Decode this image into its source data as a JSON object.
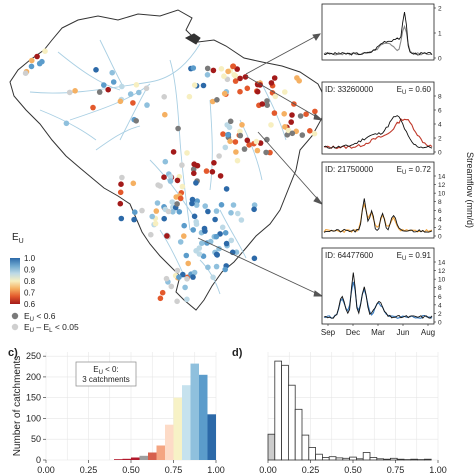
{
  "map_panel": {
    "legend": {
      "title_main": "E",
      "title_sub": "U",
      "colorbar_ticks": [
        "1.0",
        "0.9",
        "0.8",
        "0.7",
        "0.6"
      ],
      "colorbar_colors": [
        "#2c69a8",
        "#6ea8cf",
        "#bcd9e6",
        "#f7efc0",
        "#f5b062",
        "#e3592c",
        "#a31a1a"
      ],
      "point_legend": [
        {
          "label_a": "E",
          "label_a_sub": "U",
          "label_b": " < 0.6",
          "color": "#7a7a7a"
        },
        {
          "label_a": "E",
          "label_a_sub": "U",
          "label_b": " – E",
          "label_c_sub": "L",
          "label_d": " < 0.05",
          "color": "#cfcfcf"
        }
      ]
    },
    "river_color": "#a9cfe3",
    "outline_color": "#333333"
  },
  "hydrographs": {
    "ylabel": "Streamflow (mm/d)",
    "x_ticks": [
      "Sep",
      "Dec",
      "Mar",
      "Jun",
      "Aug"
    ],
    "panels": [
      {
        "id_label": "",
        "eu_label": "",
        "y_ticks": [
          "0",
          "1",
          "2"
        ],
        "obs_color": "#111111",
        "sim_color": "#8a8a8a"
      },
      {
        "id_label": "ID: 33260000",
        "eu_label": "0.60",
        "y_ticks": [
          "0",
          "2",
          "4",
          "6",
          "8"
        ],
        "obs_color": "#111111",
        "sim_color": "#c0392b"
      },
      {
        "id_label": "ID: 21750000",
        "eu_label": "0.72",
        "y_ticks": [
          "0",
          "2",
          "4",
          "6",
          "8",
          "10",
          "12",
          "14"
        ],
        "obs_color": "#111111",
        "sim_color": "#f0a33c"
      },
      {
        "id_label": "ID: 64477600",
        "eu_label": "0.91",
        "y_ticks": [
          "0",
          "2",
          "4",
          "6",
          "8",
          "10",
          "12",
          "14"
        ],
        "obs_color": "#111111",
        "sim_color": "#3a7bbf"
      }
    ]
  },
  "chart_data": [
    {
      "panel_label": "c)",
      "type": "bar",
      "ylabel": "Number of catchments",
      "xlabel": "",
      "x_ticks": [
        "0.00",
        "0.25",
        "0.50",
        "0.75",
        "1.00"
      ],
      "y_ticks": [
        "0",
        "50",
        "100",
        "150",
        "200",
        "250"
      ],
      "xlim": [
        0,
        1
      ],
      "ylim": [
        0,
        260
      ],
      "annotation_line1": "E",
      "annotation_line1_sub": "U",
      "annotation_line1_rest": " < 0:",
      "annotation_line2": "3 catchments",
      "bin_width": 0.05,
      "bins": [
        {
          "x": 0.4,
          "value": 2,
          "color": "#b2182b"
        },
        {
          "x": 0.45,
          "value": 3,
          "color": "#b2182b"
        },
        {
          "x": 0.5,
          "value": 6,
          "color": "#b2182b"
        },
        {
          "x": 0.55,
          "value": 10,
          "color": "#9e9e9e"
        },
        {
          "x": 0.6,
          "value": 18,
          "color": "#d6604d"
        },
        {
          "x": 0.65,
          "value": 35,
          "color": "#f4a582"
        },
        {
          "x": 0.7,
          "value": 85,
          "color": "#fddbc7"
        },
        {
          "x": 0.75,
          "value": 150,
          "color": "#f7f2c6"
        },
        {
          "x": 0.8,
          "value": 180,
          "color": "#c6e2ee"
        },
        {
          "x": 0.85,
          "value": 232,
          "color": "#8fc0dd"
        },
        {
          "x": 0.9,
          "value": 205,
          "color": "#5b9ccb"
        },
        {
          "x": 0.95,
          "value": 110,
          "color": "#2c69a8"
        }
      ]
    },
    {
      "panel_label": "d)",
      "type": "bar",
      "ylabel": "",
      "xlabel": "",
      "x_ticks": [
        "0.00",
        "0.25",
        "0.50",
        "0.75",
        "1.00"
      ],
      "y_ticks": [],
      "xlim": [
        0,
        1
      ],
      "ylim": [
        0,
        260
      ],
      "bin_width": 0.04,
      "bins": [
        {
          "x": 0.0,
          "value": 62,
          "color": "#cccccc"
        },
        {
          "x": 0.04,
          "value": 238,
          "color": "#ffffff"
        },
        {
          "x": 0.08,
          "value": 228,
          "color": "#ffffff"
        },
        {
          "x": 0.12,
          "value": 180,
          "color": "#ffffff"
        },
        {
          "x": 0.16,
          "value": 122,
          "color": "#ffffff"
        },
        {
          "x": 0.2,
          "value": 60,
          "color": "#ffffff"
        },
        {
          "x": 0.24,
          "value": 30,
          "color": "#ffffff"
        },
        {
          "x": 0.28,
          "value": 14,
          "color": "#ffffff"
        },
        {
          "x": 0.32,
          "value": 6,
          "color": "#ffffff"
        },
        {
          "x": 0.36,
          "value": 8,
          "color": "#ffffff"
        },
        {
          "x": 0.4,
          "value": 5,
          "color": "#ffffff"
        },
        {
          "x": 0.44,
          "value": 4,
          "color": "#ffffff"
        },
        {
          "x": 0.48,
          "value": 7,
          "color": "#ffffff"
        },
        {
          "x": 0.52,
          "value": 3,
          "color": "#ffffff"
        },
        {
          "x": 0.56,
          "value": 18,
          "color": "#ffffff"
        },
        {
          "x": 0.6,
          "value": 6,
          "color": "#ffffff"
        },
        {
          "x": 0.64,
          "value": 3,
          "color": "#ffffff"
        },
        {
          "x": 0.68,
          "value": 2,
          "color": "#ffffff"
        },
        {
          "x": 0.72,
          "value": 4,
          "color": "#ffffff"
        },
        {
          "x": 0.76,
          "value": 2,
          "color": "#ffffff"
        },
        {
          "x": 0.8,
          "value": 1,
          "color": "#ffffff"
        },
        {
          "x": 0.84,
          "value": 2,
          "color": "#ffffff"
        },
        {
          "x": 0.88,
          "value": 1,
          "color": "#ffffff"
        },
        {
          "x": 0.92,
          "value": 2,
          "color": "#ffffff"
        }
      ]
    }
  ]
}
